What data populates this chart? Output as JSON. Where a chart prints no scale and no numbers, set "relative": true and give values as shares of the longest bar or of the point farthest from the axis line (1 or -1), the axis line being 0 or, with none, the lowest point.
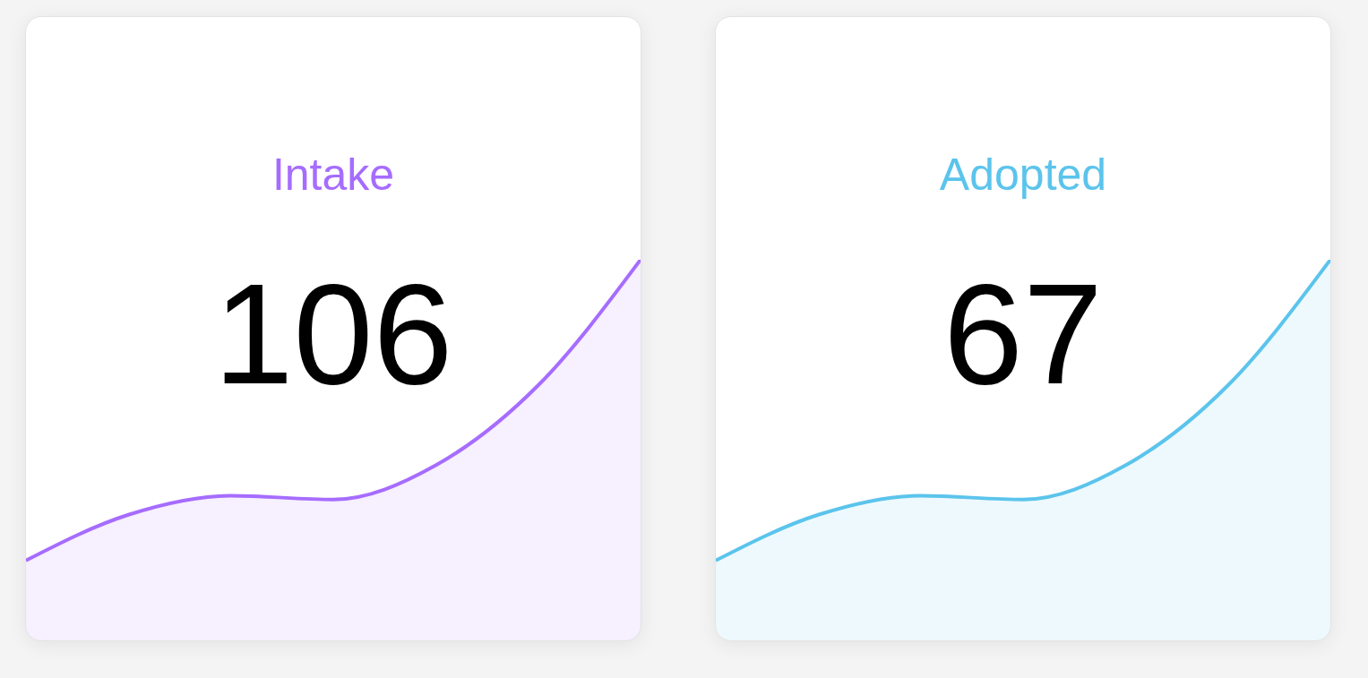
{
  "chart_data": [
    {
      "type": "area",
      "title": "Intake",
      "annotations": [
        "106"
      ],
      "relative": true,
      "categories": [
        null,
        null,
        null,
        null,
        null,
        null,
        null
      ],
      "values": [
        0.21,
        0.33,
        0.38,
        0.37,
        0.46,
        0.67,
        1.0
      ],
      "color": "#a66cff"
    },
    {
      "type": "area",
      "title": "Adopted",
      "annotations": [
        "67"
      ],
      "relative": true,
      "categories": [
        null,
        null,
        null,
        null,
        null,
        null,
        null
      ],
      "values": [
        0.21,
        0.33,
        0.38,
        0.37,
        0.46,
        0.67,
        1.0
      ],
      "color": "#5bc4ec"
    }
  ]
}
